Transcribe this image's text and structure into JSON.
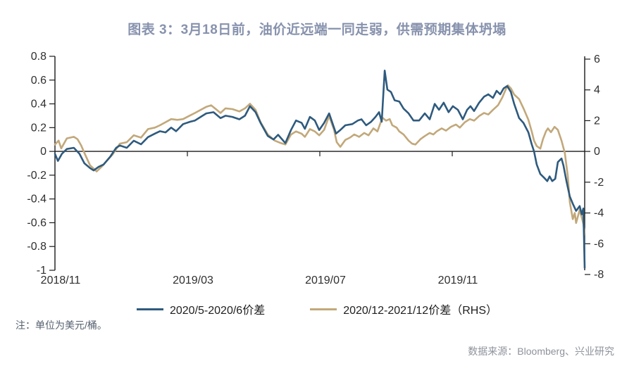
{
  "header": {
    "title": "图表 3：3月18日前，油价近远端一同走弱，供需预期集体坍塌"
  },
  "footer": {
    "note": "注：单位为美元/桶。",
    "source": "数据来源：Bloomberg、兴业研究"
  },
  "colors": {
    "title": "#8792ad",
    "axis": "#1a1a1a",
    "tick_label": "#2f2f2f"
  },
  "chart_data": {
    "type": "line",
    "title": "图表 3：3月18日前，油价近远端一同走弱，供需预期集体坍塌",
    "unit_note": "美元/桶",
    "grid": false,
    "legend_position": "bottom",
    "x_axis": {
      "range": [
        0,
        16
      ],
      "unit": "months since 2018/11",
      "ticks": [
        {
          "t": 0,
          "label": "2018/11"
        },
        {
          "t": 4,
          "label": "2019/03"
        },
        {
          "t": 8,
          "label": "2019/07"
        },
        {
          "t": 12,
          "label": "2019/11"
        }
      ]
    },
    "left_axis": {
      "range": [
        -1,
        0.8
      ],
      "tick_labels": [
        "0.8",
        "0.6",
        "0.4",
        "0.2",
        "0",
        "-0.2",
        "-0.4",
        "-0.6",
        "-0.8",
        "-1"
      ]
    },
    "right_axis": {
      "range": [
        -8,
        6
      ],
      "tick_labels": [
        "6",
        "4",
        "2",
        "0",
        "-2",
        "-4",
        "-6",
        "-8"
      ]
    },
    "series": [
      {
        "name": "2020/12-2021/12价差（RHS）",
        "axis": "right",
        "color": "#c2a87a",
        "points": [
          [
            0,
            0.45
          ],
          [
            0.11,
            0.7
          ],
          [
            0.19,
            0.2
          ],
          [
            0.36,
            0.85
          ],
          [
            0.57,
            0.95
          ],
          [
            0.68,
            0.8
          ],
          [
            0.79,
            0.4
          ],
          [
            0.89,
            -0.1
          ],
          [
            1.06,
            -0.9
          ],
          [
            1.26,
            -1.3
          ],
          [
            1.43,
            -0.95
          ],
          [
            1.53,
            -0.7
          ],
          [
            1.74,
            -0.2
          ],
          [
            1.96,
            0.5
          ],
          [
            2.17,
            0.6
          ],
          [
            2.38,
            1.05
          ],
          [
            2.6,
            0.9
          ],
          [
            2.81,
            1.45
          ],
          [
            3.02,
            1.55
          ],
          [
            3.17,
            1.7
          ],
          [
            3.34,
            1.9
          ],
          [
            3.51,
            2.1
          ],
          [
            3.7,
            2.05
          ],
          [
            3.87,
            2.1
          ],
          [
            4.09,
            2.35
          ],
          [
            4.23,
            2.5
          ],
          [
            4.4,
            2.7
          ],
          [
            4.57,
            2.9
          ],
          [
            4.72,
            3
          ],
          [
            4.89,
            2.7
          ],
          [
            5,
            2.5
          ],
          [
            5.15,
            2.8
          ],
          [
            5.36,
            2.75
          ],
          [
            5.57,
            2.6
          ],
          [
            5.74,
            2.8
          ],
          [
            5.89,
            3.1
          ],
          [
            6.06,
            2.7
          ],
          [
            6.21,
            1.9
          ],
          [
            6.43,
            1.1
          ],
          [
            6.64,
            0.7
          ],
          [
            6.81,
            0.55
          ],
          [
            6.96,
            0.45
          ],
          [
            7.13,
            1.1
          ],
          [
            7.28,
            1.3
          ],
          [
            7.45,
            1.15
          ],
          [
            7.55,
            0.95
          ],
          [
            7.7,
            1.45
          ],
          [
            7.85,
            1.3
          ],
          [
            7.98,
            1.05
          ],
          [
            8.13,
            1.4
          ],
          [
            8.28,
            2.3
          ],
          [
            8.43,
            1.4
          ],
          [
            8.51,
            0.6
          ],
          [
            8.62,
            0.3
          ],
          [
            8.77,
            0.75
          ],
          [
            8.91,
            0.9
          ],
          [
            9.04,
            1.1
          ],
          [
            9.19,
            0.95
          ],
          [
            9.34,
            1.2
          ],
          [
            9.47,
            1.05
          ],
          [
            9.62,
            1.5
          ],
          [
            9.74,
            1.3
          ],
          [
            9.89,
            2.2
          ],
          [
            10,
            2
          ],
          [
            10.11,
            2.1
          ],
          [
            10.19,
            1.7
          ],
          [
            10.32,
            1.55
          ],
          [
            10.4,
            1.3
          ],
          [
            10.53,
            1.1
          ],
          [
            10.68,
            0.7
          ],
          [
            10.79,
            0.5
          ],
          [
            10.89,
            0.45
          ],
          [
            11.04,
            0.8
          ],
          [
            11.17,
            1
          ],
          [
            11.32,
            1.2
          ],
          [
            11.43,
            1.1
          ],
          [
            11.53,
            1.3
          ],
          [
            11.68,
            1.5
          ],
          [
            11.81,
            1.35
          ],
          [
            11.96,
            1.6
          ],
          [
            12.11,
            1.75
          ],
          [
            12.23,
            1.55
          ],
          [
            12.38,
            1.9
          ],
          [
            12.53,
            2.1
          ],
          [
            12.66,
            2
          ],
          [
            12.81,
            2.3
          ],
          [
            12.96,
            2.5
          ],
          [
            13.09,
            2.4
          ],
          [
            13.23,
            2.7
          ],
          [
            13.38,
            3
          ],
          [
            13.51,
            3.5
          ],
          [
            13.62,
            4.05
          ],
          [
            13.68,
            4.3
          ],
          [
            13.77,
            4.1
          ],
          [
            13.87,
            3.7
          ],
          [
            14.02,
            3.4
          ],
          [
            14.15,
            2.8
          ],
          [
            14.3,
            2.05
          ],
          [
            14.4,
            1.3
          ],
          [
            14.47,
            0.7
          ],
          [
            14.55,
            0.35
          ],
          [
            14.66,
            0.18
          ],
          [
            14.74,
            0.8
          ],
          [
            14.83,
            1.3
          ],
          [
            14.89,
            1.5
          ],
          [
            14.98,
            1.25
          ],
          [
            15.09,
            1.6
          ],
          [
            15.19,
            1.4
          ],
          [
            15.3,
            0.7
          ],
          [
            15.4,
            -0.1
          ],
          [
            15.49,
            -1.6
          ],
          [
            15.55,
            -3.3
          ],
          [
            15.64,
            -4.4
          ],
          [
            15.7,
            -4
          ],
          [
            15.74,
            -4.65
          ],
          [
            15.85,
            -3.8
          ],
          [
            15.91,
            -4.3
          ],
          [
            15.96,
            -4.7
          ],
          [
            16,
            -5.4
          ]
        ]
      },
      {
        "name": "2020/5-2020/6价差",
        "axis": "left",
        "color": "#2e5a7e",
        "points": [
          [
            0,
            -0.02
          ],
          [
            0.09,
            -0.08
          ],
          [
            0.21,
            -0.02
          ],
          [
            0.36,
            0.02
          ],
          [
            0.57,
            0.03
          ],
          [
            0.74,
            -0.02
          ],
          [
            0.89,
            -0.1
          ],
          [
            1.06,
            -0.14
          ],
          [
            1.17,
            -0.16
          ],
          [
            1.32,
            -0.13
          ],
          [
            1.47,
            -0.11
          ],
          [
            1.68,
            -0.04
          ],
          [
            1.85,
            0.03
          ],
          [
            1.96,
            0.05
          ],
          [
            2.17,
            0.03
          ],
          [
            2.38,
            0.09
          ],
          [
            2.6,
            0.06
          ],
          [
            2.81,
            0.12
          ],
          [
            3.02,
            0.15
          ],
          [
            3.17,
            0.17
          ],
          [
            3.34,
            0.16
          ],
          [
            3.51,
            0.2
          ],
          [
            3.66,
            0.17
          ],
          [
            3.87,
            0.23
          ],
          [
            4.09,
            0.25
          ],
          [
            4.23,
            0.26
          ],
          [
            4.4,
            0.29
          ],
          [
            4.57,
            0.32
          ],
          [
            4.79,
            0.33
          ],
          [
            5,
            0.28
          ],
          [
            5.15,
            0.3
          ],
          [
            5.36,
            0.29
          ],
          [
            5.57,
            0.27
          ],
          [
            5.74,
            0.3
          ],
          [
            5.89,
            0.38
          ],
          [
            6.06,
            0.33
          ],
          [
            6.21,
            0.24
          ],
          [
            6.43,
            0.13
          ],
          [
            6.6,
            0.1
          ],
          [
            6.74,
            0.14
          ],
          [
            6.96,
            0.07
          ],
          [
            7.13,
            0.18
          ],
          [
            7.28,
            0.26
          ],
          [
            7.45,
            0.24
          ],
          [
            7.55,
            0.19
          ],
          [
            7.7,
            0.29
          ],
          [
            7.85,
            0.26
          ],
          [
            7.98,
            0.18
          ],
          [
            8.13,
            0.24
          ],
          [
            8.28,
            0.32
          ],
          [
            8.49,
            0.15
          ],
          [
            8.62,
            0.18
          ],
          [
            8.77,
            0.22
          ],
          [
            8.98,
            0.23
          ],
          [
            9.15,
            0.26
          ],
          [
            9.26,
            0.27
          ],
          [
            9.4,
            0.22
          ],
          [
            9.55,
            0.25
          ],
          [
            9.68,
            0.29
          ],
          [
            9.79,
            0.33
          ],
          [
            9.87,
            0.25
          ],
          [
            9.96,
            0.68
          ],
          [
            10.04,
            0.52
          ],
          [
            10.15,
            0.5
          ],
          [
            10.26,
            0.43
          ],
          [
            10.4,
            0.42
          ],
          [
            10.53,
            0.36
          ],
          [
            10.68,
            0.32
          ],
          [
            10.83,
            0.26
          ],
          [
            11,
            0.26
          ],
          [
            11.17,
            0.32
          ],
          [
            11.32,
            0.27
          ],
          [
            11.47,
            0.4
          ],
          [
            11.6,
            0.35
          ],
          [
            11.74,
            0.41
          ],
          [
            11.89,
            0.33
          ],
          [
            12.02,
            0.38
          ],
          [
            12.17,
            0.35
          ],
          [
            12.32,
            0.27
          ],
          [
            12.45,
            0.35
          ],
          [
            12.55,
            0.38
          ],
          [
            12.66,
            0.34
          ],
          [
            12.81,
            0.41
          ],
          [
            12.96,
            0.46
          ],
          [
            13.09,
            0.48
          ],
          [
            13.23,
            0.45
          ],
          [
            13.34,
            0.51
          ],
          [
            13.45,
            0.48
          ],
          [
            13.55,
            0.53
          ],
          [
            13.66,
            0.55
          ],
          [
            13.77,
            0.5
          ],
          [
            13.87,
            0.4
          ],
          [
            14.02,
            0.28
          ],
          [
            14.15,
            0.24
          ],
          [
            14.3,
            0.16
          ],
          [
            14.4,
            0.06
          ],
          [
            14.47,
            0
          ],
          [
            14.55,
            -0.11
          ],
          [
            14.66,
            -0.19
          ],
          [
            14.77,
            -0.22
          ],
          [
            14.87,
            -0.25
          ],
          [
            14.94,
            -0.21
          ],
          [
            15.02,
            -0.25
          ],
          [
            15.11,
            -0.23
          ],
          [
            15.19,
            -0.09
          ],
          [
            15.3,
            -0.06
          ],
          [
            15.36,
            -0.12
          ],
          [
            15.45,
            -0.25
          ],
          [
            15.55,
            -0.38
          ],
          [
            15.64,
            -0.44
          ],
          [
            15.74,
            -0.5
          ],
          [
            15.85,
            -0.46
          ],
          [
            15.91,
            -0.53
          ],
          [
            15.96,
            -0.48
          ],
          [
            15.98,
            -0.75
          ],
          [
            16,
            -0.98
          ]
        ]
      }
    ]
  }
}
